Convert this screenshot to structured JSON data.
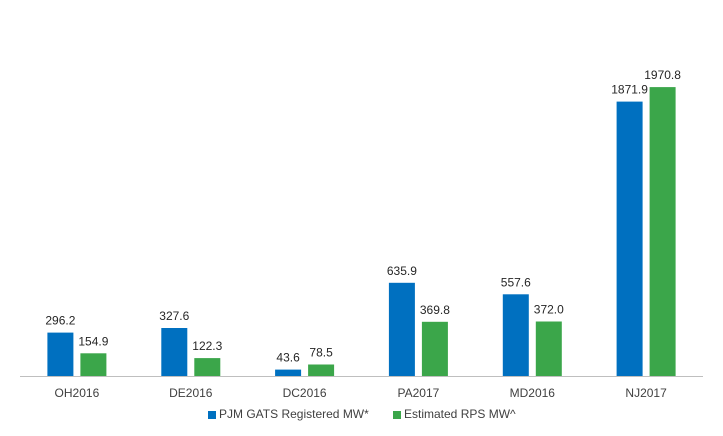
{
  "chart_data": {
    "type": "bar",
    "title": "",
    "xlabel": "",
    "ylabel": "",
    "ylim": [
      0,
      2200
    ],
    "grid": false,
    "legend_position": "bottom",
    "categories": [
      "OH2016",
      "DE2016",
      "DC2016",
      "PA2017",
      "MD2016",
      "NJ2017"
    ],
    "series": [
      {
        "name": "PJM GATS Registered MW*",
        "color": "#0070C0",
        "values": [
          296.2,
          327.6,
          43.6,
          635.9,
          557.6,
          1871.9
        ],
        "labels": [
          "296.2",
          "327.6",
          "43.6",
          "635.9",
          "557.6",
          "1871.9"
        ]
      },
      {
        "name": "Estimated RPS MW^",
        "color": "#3BA64A",
        "values": [
          154.9,
          122.3,
          78.5,
          369.8,
          372.0,
          1970.8
        ],
        "labels": [
          "154.9",
          "122.3",
          "78.5",
          "369.8",
          "372.0",
          "1970.8"
        ]
      }
    ]
  }
}
